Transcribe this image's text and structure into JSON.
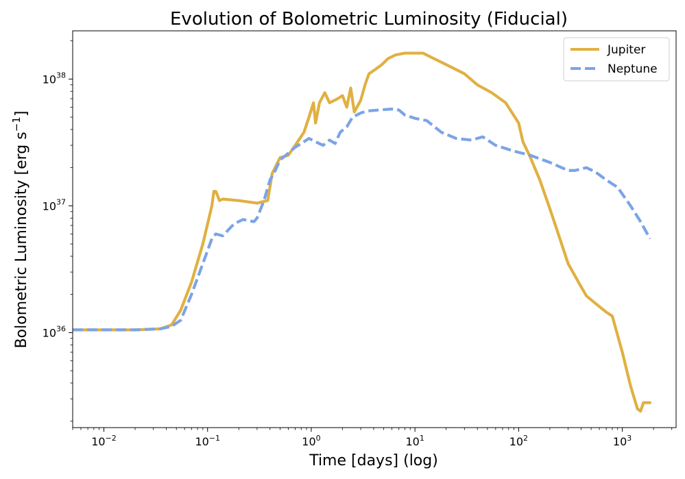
{
  "chart_data": {
    "type": "line",
    "title": "Evolution of Bolometric Luminosity (Fiducial)",
    "xlabel": "Time [days] (log)",
    "ylabel_main": "Bolometric Luminosity [erg s",
    "ylabel_sup": "−1",
    "ylabel_close": "]",
    "xscale": "log",
    "yscale": "log",
    "xlim": [
      0.005,
      3300
    ],
    "ylim": [
      1.78e+35,
      2.4e+38
    ],
    "xticks": [
      {
        "value": 0.01,
        "base": "10",
        "exp": "−2"
      },
      {
        "value": 0.1,
        "base": "10",
        "exp": "−1"
      },
      {
        "value": 1,
        "base": "10",
        "exp": "0"
      },
      {
        "value": 10,
        "base": "10",
        "exp": "1"
      },
      {
        "value": 100,
        "base": "10",
        "exp": "2"
      },
      {
        "value": 1000,
        "base": "10",
        "exp": "3"
      }
    ],
    "yticks": [
      {
        "value": 1e+36,
        "base": "10",
        "exp": "36"
      },
      {
        "value": 1e+37,
        "base": "10",
        "exp": "37"
      },
      {
        "value": 1e+38,
        "base": "10",
        "exp": "38"
      }
    ],
    "legend_position": "top-right",
    "series": [
      {
        "name": "Jupiter",
        "color": "#e0b041",
        "style": "solid",
        "x": [
          0.005,
          0.01,
          0.02,
          0.035,
          0.045,
          0.055,
          0.07,
          0.09,
          0.11,
          0.115,
          0.12,
          0.125,
          0.13,
          0.14,
          0.2,
          0.3,
          0.38,
          0.42,
          0.5,
          0.6,
          0.7,
          0.85,
          0.95,
          1.05,
          1.1,
          1.2,
          1.35,
          1.5,
          1.8,
          2.0,
          2.2,
          2.4,
          2.6,
          3.0,
          3.3,
          3.6,
          3.9,
          4.2,
          4.8,
          5.5,
          6.5,
          8,
          10,
          12,
          14,
          20,
          30,
          40,
          55,
          75,
          100,
          110,
          130,
          160,
          200,
          250,
          300,
          400,
          450,
          550,
          700,
          800,
          1000,
          1200,
          1400,
          1500,
          1600,
          1850
        ],
        "values": [
          1.05e+36,
          1.05e+36,
          1.05e+36,
          1.07e+36,
          1.15e+36,
          1.5e+36,
          2.5e+36,
          5e+36,
          1e+37,
          1.3e+37,
          1.3e+37,
          1.2e+37,
          1.1e+37,
          1.13e+37,
          1.1e+37,
          1.05e+37,
          1.1e+37,
          1.8e+37,
          2.4e+37,
          2.5e+37,
          3e+37,
          3.8e+37,
          5e+37,
          6.5e+37,
          4.5e+37,
          6.5e+37,
          7.8e+37,
          6.5e+37,
          7e+37,
          7.4e+37,
          6e+37,
          8.5e+37,
          5.5e+37,
          6.8e+37,
          9e+37,
          1.1e+38,
          1.15e+38,
          1.2e+38,
          1.3e+38,
          1.45e+38,
          1.55e+38,
          1.6e+38,
          1.6e+38,
          1.6e+38,
          1.5e+38,
          1.3e+38,
          1.1e+38,
          9e+37,
          7.8e+37,
          6.5e+37,
          4.5e+37,
          3.2e+37,
          2.4e+37,
          1.6e+37,
          9.5e+36,
          5.5e+36,
          3.5e+36,
          2.3e+36,
          1.95e+36,
          1.7e+36,
          1.45e+36,
          1.35e+36,
          7e+35,
          3.8e+35,
          2.5e+35,
          2.4e+35,
          2.8e+35,
          2.8e+35
        ]
      },
      {
        "name": "Neptune",
        "color": "#7ba4e6",
        "style": "dashed",
        "x": [
          0.005,
          0.01,
          0.02,
          0.035,
          0.045,
          0.055,
          0.07,
          0.09,
          0.11,
          0.12,
          0.14,
          0.18,
          0.22,
          0.28,
          0.3,
          0.35,
          0.4,
          0.45,
          0.5,
          0.6,
          0.7,
          0.8,
          0.95,
          1.1,
          1.3,
          1.5,
          1.7,
          1.9,
          2.2,
          2.5,
          3,
          3.5,
          4.5,
          6,
          7,
          8,
          10,
          13,
          18,
          25,
          35,
          45,
          60,
          90,
          130,
          200,
          300,
          350,
          450,
          550,
          700,
          900,
          1200,
          1500,
          1850
        ],
        "values": [
          1.05e+36,
          1.05e+36,
          1.05e+36,
          1.07e+36,
          1.12e+36,
          1.25e+36,
          2e+36,
          3.5e+36,
          5.5e+36,
          6e+36,
          5.8e+36,
          7.2e+36,
          7.8e+36,
          7.5e+36,
          8e+36,
          1.1e+37,
          1.6e+37,
          1.9e+37,
          2.3e+37,
          2.6e+37,
          2.9e+37,
          3.1e+37,
          3.4e+37,
          3.2e+37,
          3e+37,
          3.3e+37,
          3.1e+37,
          3.8e+37,
          4.2e+37,
          5e+37,
          5.4e+37,
          5.6e+37,
          5.7e+37,
          5.8e+37,
          5.7e+37,
          5.2e+37,
          4.9e+37,
          4.7e+37,
          3.8e+37,
          3.4e+37,
          3.3e+37,
          3.5e+37,
          3e+37,
          2.7e+37,
          2.5e+37,
          2.2e+37,
          1.9e+37,
          1.9e+37,
          2e+37,
          1.85e+37,
          1.6e+37,
          1.4e+37,
          1e+37,
          7.5e+36,
          5.5e+36
        ]
      }
    ]
  }
}
